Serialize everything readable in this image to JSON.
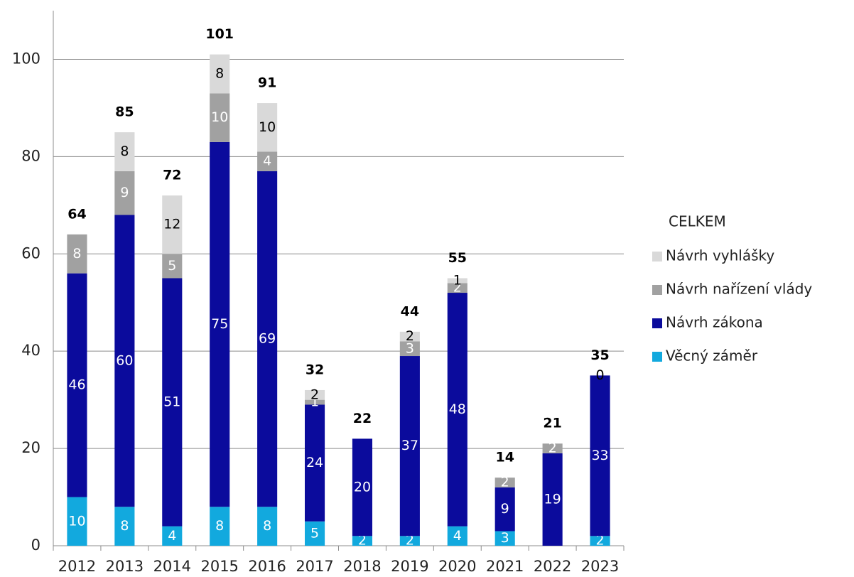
{
  "chart_data": {
    "type": "stacked_bar",
    "categories": [
      "2012",
      "2013",
      "2014",
      "2015",
      "2016",
      "2017",
      "2018",
      "2019",
      "2020",
      "2021",
      "2022",
      "2023"
    ],
    "series": [
      {
        "name": "Věcný záměr",
        "color": "#12a9de",
        "label_color": "#ffffff",
        "values": [
          10,
          8,
          4,
          8,
          8,
          5,
          2,
          2,
          4,
          3,
          null,
          2
        ]
      },
      {
        "name": "Návrh zákona",
        "color": "#0b0b9c",
        "label_color": "#ffffff",
        "values": [
          46,
          60,
          51,
          75,
          69,
          24,
          20,
          37,
          48,
          9,
          19,
          33
        ]
      },
      {
        "name": "Návrh nařízení vlády",
        "color": "#a1a1a1",
        "label_color": "#ffffff",
        "values": [
          8,
          9,
          5,
          10,
          4,
          1,
          null,
          3,
          2,
          2,
          2,
          null
        ]
      },
      {
        "name": "Návrh vyhlášky",
        "color": "#d9d9d9",
        "label_color": "#000000",
        "values": [
          null,
          8,
          12,
          8,
          10,
          2,
          null,
          2,
          1,
          null,
          null,
          0
        ]
      }
    ],
    "totals": {
      "name": "CELKEM",
      "values": [
        64,
        85,
        72,
        101,
        91,
        32,
        22,
        44,
        55,
        14,
        21,
        35
      ]
    },
    "ylim": [
      0,
      110
    ],
    "yticks": [
      0,
      20,
      40,
      60,
      80,
      100
    ],
    "grid": true,
    "legend": "right"
  }
}
